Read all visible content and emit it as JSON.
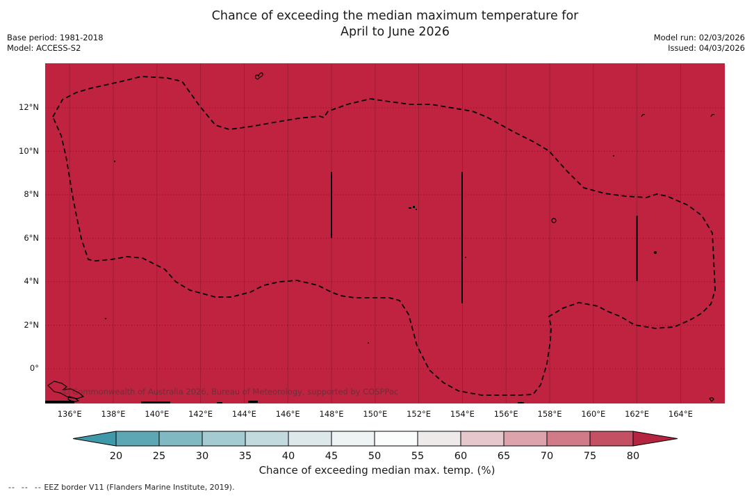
{
  "header": {
    "title_line1": "Chance of exceeding the median maximum temperature for",
    "title_line2": "April to June 2026",
    "base_period": "Base period: 1981-2018",
    "model": "Model: ACCESS-S2",
    "model_run": "Model run: 02/03/2026",
    "issued": "Issued: 04/03/2026"
  },
  "map": {
    "watermark": "© Commonwealth of Australia 2026, Bureau of Meteorology, supported by COSPPac",
    "fill_color": "#bf2340",
    "fill_percent_bin": "> 80",
    "eez_border_color": "#000000"
  },
  "axes": {
    "lat_ticks": [
      "12°N",
      "10°N",
      "8°N",
      "6°N",
      "4°N",
      "2°N",
      "0°"
    ],
    "lon_ticks": [
      "136°E",
      "138°E",
      "140°E",
      "142°E",
      "144°E",
      "146°E",
      "148°E",
      "150°E",
      "152°E",
      "154°E",
      "156°E",
      "158°E",
      "160°E",
      "162°E",
      "164°E"
    ]
  },
  "colorbar": {
    "title": "Chance of exceeding median max. temp. (%)",
    "tick_labels": [
      "20",
      "25",
      "30",
      "35",
      "40",
      "45",
      "50",
      "55",
      "60",
      "65",
      "70",
      "75",
      "80"
    ],
    "segment_colors": [
      "#5ca7b3",
      "#81b9c2",
      "#a4cbd1",
      "#c2d9dd",
      "#dce8ea",
      "#eef3f4",
      "#fbfcfc",
      "#efeaea",
      "#e6c8cc",
      "#dda3ac",
      "#d17b88",
      "#c35163"
    ],
    "left_arrow_color": "#3f99a9",
    "right_arrow_color": "#b32540"
  },
  "footer": {
    "dash_symbol": "--  --  --",
    "text": "EEZ border V11 (Flanders Marine Institute, 2019)."
  }
}
